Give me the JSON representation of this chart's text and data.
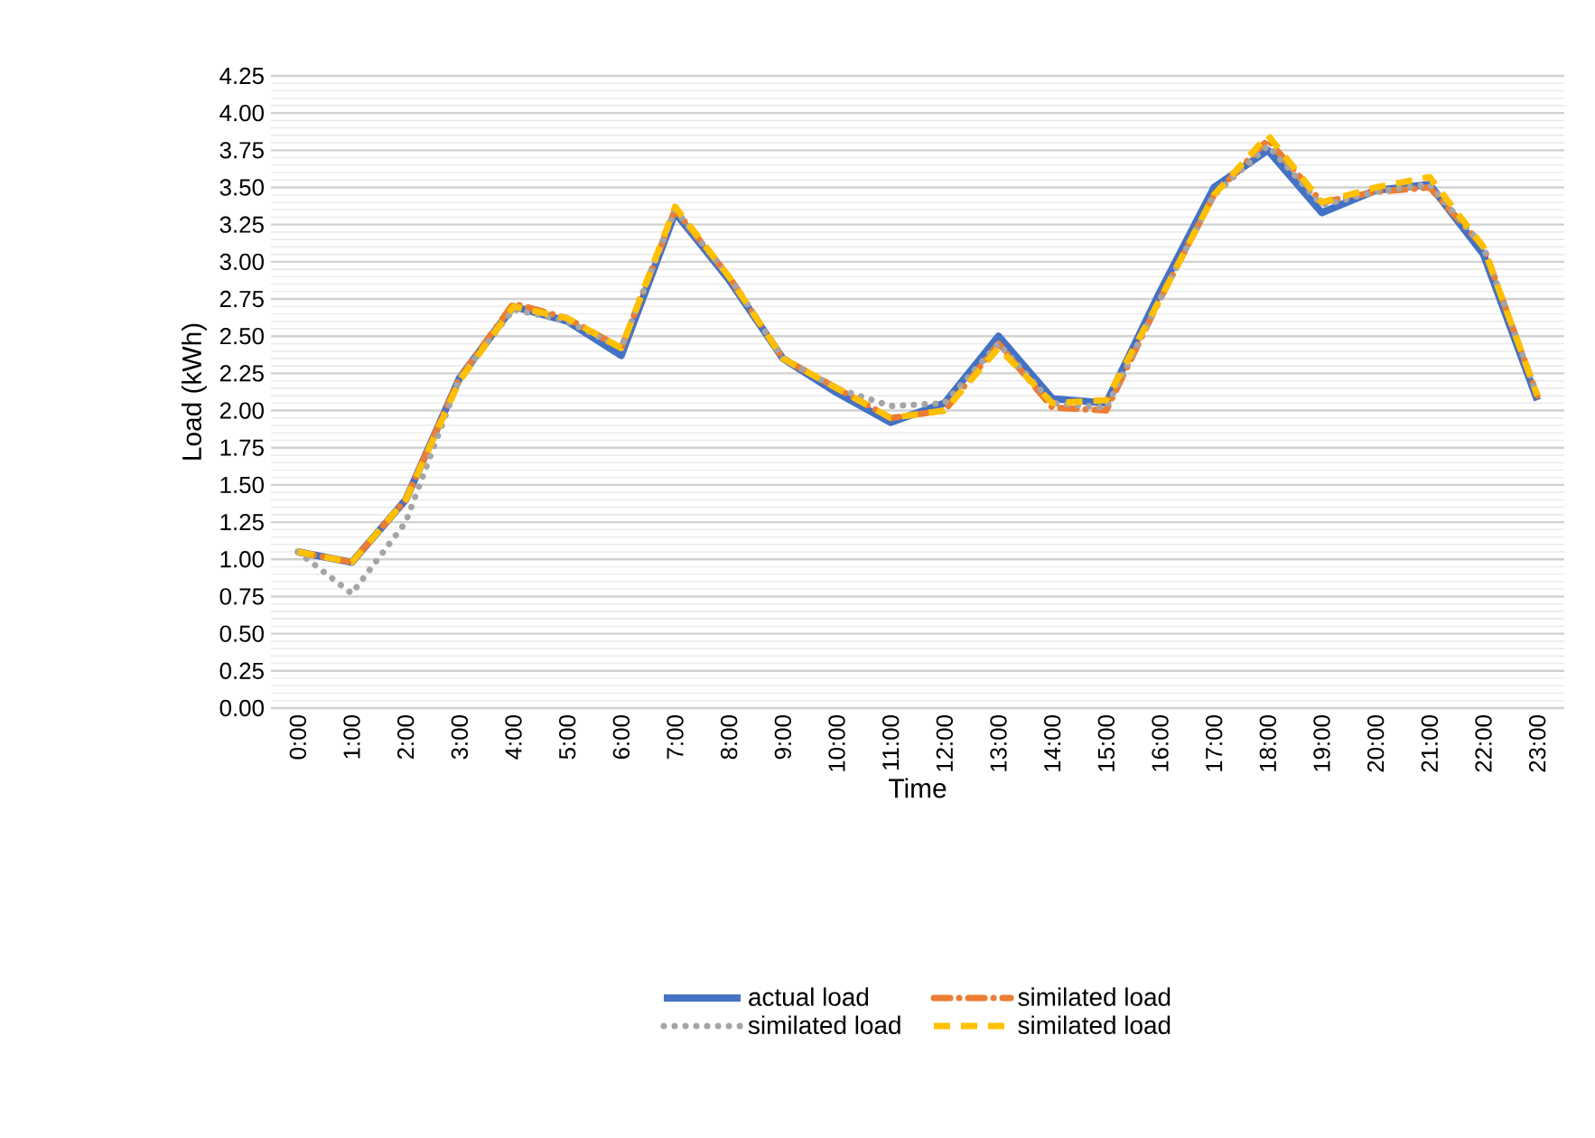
{
  "chart_data": {
    "type": "line",
    "xlabel": "Time",
    "ylabel": "Load (kWh)",
    "categories": [
      "0:00",
      "1:00",
      "2:00",
      "3:00",
      "4:00",
      "5:00",
      "6:00",
      "7:00",
      "8:00",
      "9:00",
      "10:00",
      "11:00",
      "12:00",
      "13:00",
      "14:00",
      "15:00",
      "16:00",
      "17:00",
      "18:00",
      "19:00",
      "20:00",
      "21:00",
      "22:00",
      "23:00"
    ],
    "ylim": [
      0,
      4.25
    ],
    "yticks": [
      {
        "value": 0,
        "label": "0.00"
      },
      {
        "value": 0.25,
        "label": "0.25"
      },
      {
        "value": 0.5,
        "label": "0.50"
      },
      {
        "value": 0.75,
        "label": "0.75"
      },
      {
        "value": 1,
        "label": "1.00"
      },
      {
        "value": 1.25,
        "label": "1.25"
      },
      {
        "value": 1.5,
        "label": "1.50"
      },
      {
        "value": 1.75,
        "label": "1.75"
      },
      {
        "value": 2,
        "label": "2.00"
      },
      {
        "value": 2.25,
        "label": "2.25"
      },
      {
        "value": 2.5,
        "label": "2.50"
      },
      {
        "value": 2.75,
        "label": "2.75"
      },
      {
        "value": 3,
        "label": "3.00"
      },
      {
        "value": 3.25,
        "label": "3.25"
      },
      {
        "value": 3.5,
        "label": "3.50"
      },
      {
        "value": 3.75,
        "label": "3.75"
      },
      {
        "value": 4,
        "label": "4.00"
      },
      {
        "value": 4.25,
        "label": "4.25"
      }
    ],
    "grid": "y",
    "legend": "bottom",
    "marker": "none",
    "series": [
      {
        "name": "actual load",
        "color": "#4472c4",
        "line_style": "solid",
        "values": [
          1.05,
          0.98,
          1.4,
          2.22,
          2.7,
          2.6,
          2.37,
          3.33,
          2.88,
          2.35,
          2.12,
          1.92,
          2.05,
          2.5,
          2.08,
          2.05,
          2.8,
          3.5,
          3.75,
          3.33,
          3.48,
          3.52,
          3.05,
          2.07
        ]
      },
      {
        "name": "similated load",
        "color": "#ed7d31",
        "line_style": "dashdot",
        "values": [
          1.05,
          0.98,
          1.4,
          2.22,
          2.72,
          2.62,
          2.42,
          3.35,
          2.9,
          2.35,
          2.15,
          1.95,
          2.0,
          2.45,
          2.02,
          2.0,
          2.75,
          3.45,
          3.82,
          3.4,
          3.47,
          3.5,
          3.1,
          2.1
        ]
      },
      {
        "name": "similated load",
        "color": "#a5a5a5",
        "line_style": "dotted",
        "values": [
          1.05,
          0.77,
          1.25,
          2.22,
          2.68,
          2.6,
          2.42,
          3.35,
          2.9,
          2.35,
          2.15,
          2.03,
          2.05,
          2.45,
          2.05,
          2.02,
          2.75,
          3.45,
          3.78,
          3.38,
          3.47,
          3.52,
          3.1,
          2.1
        ]
      },
      {
        "name": "similated load",
        "color": "#ffc000",
        "line_style": "dashed",
        "values": [
          1.05,
          0.98,
          1.4,
          2.2,
          2.7,
          2.62,
          2.42,
          3.37,
          2.9,
          2.35,
          2.15,
          1.95,
          2.0,
          2.42,
          2.05,
          2.07,
          2.75,
          3.45,
          3.85,
          3.4,
          3.5,
          3.57,
          3.1,
          2.1
        ]
      }
    ]
  }
}
